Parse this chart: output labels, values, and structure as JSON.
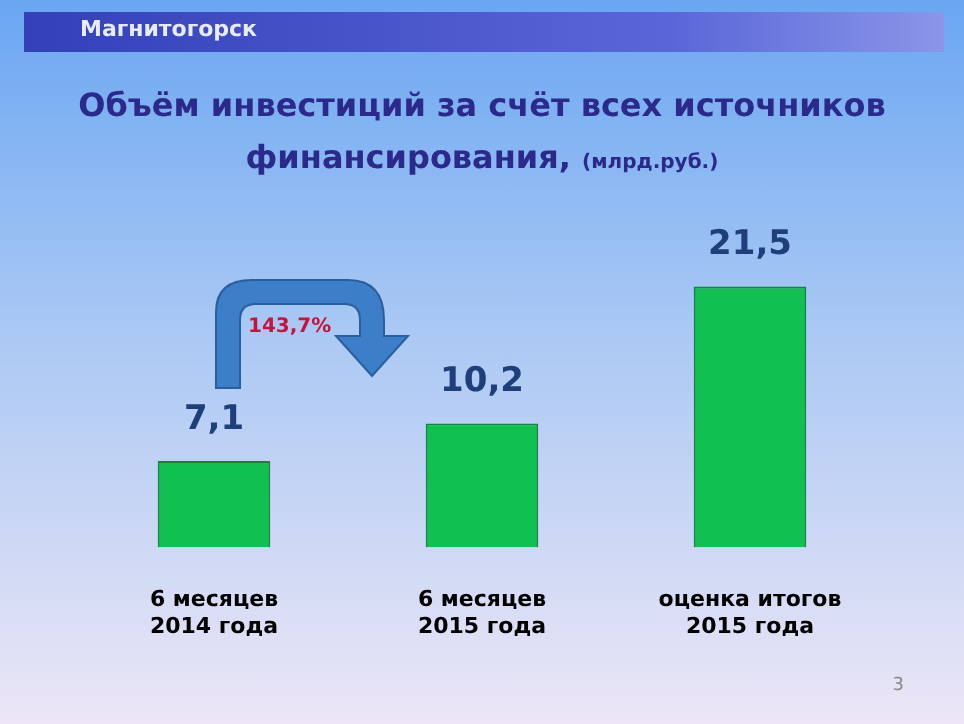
{
  "chart_data": {
    "type": "bar",
    "title": "Объём инвестиций за счёт всех источников финансирования,",
    "subtitle": "(млрд.руб.)",
    "categories": [
      "6 месяцев\n2014 года",
      "6 месяцев\n2015 года",
      "оценка итогов\n2015 года"
    ],
    "values": [
      7.1,
      10.2,
      21.5
    ],
    "value_labels": [
      "7,1",
      "10,2",
      "21,5"
    ],
    "color": "#10c050",
    "annotations": [
      "Магнитогорск",
      "143,7%",
      "3"
    ]
  }
}
